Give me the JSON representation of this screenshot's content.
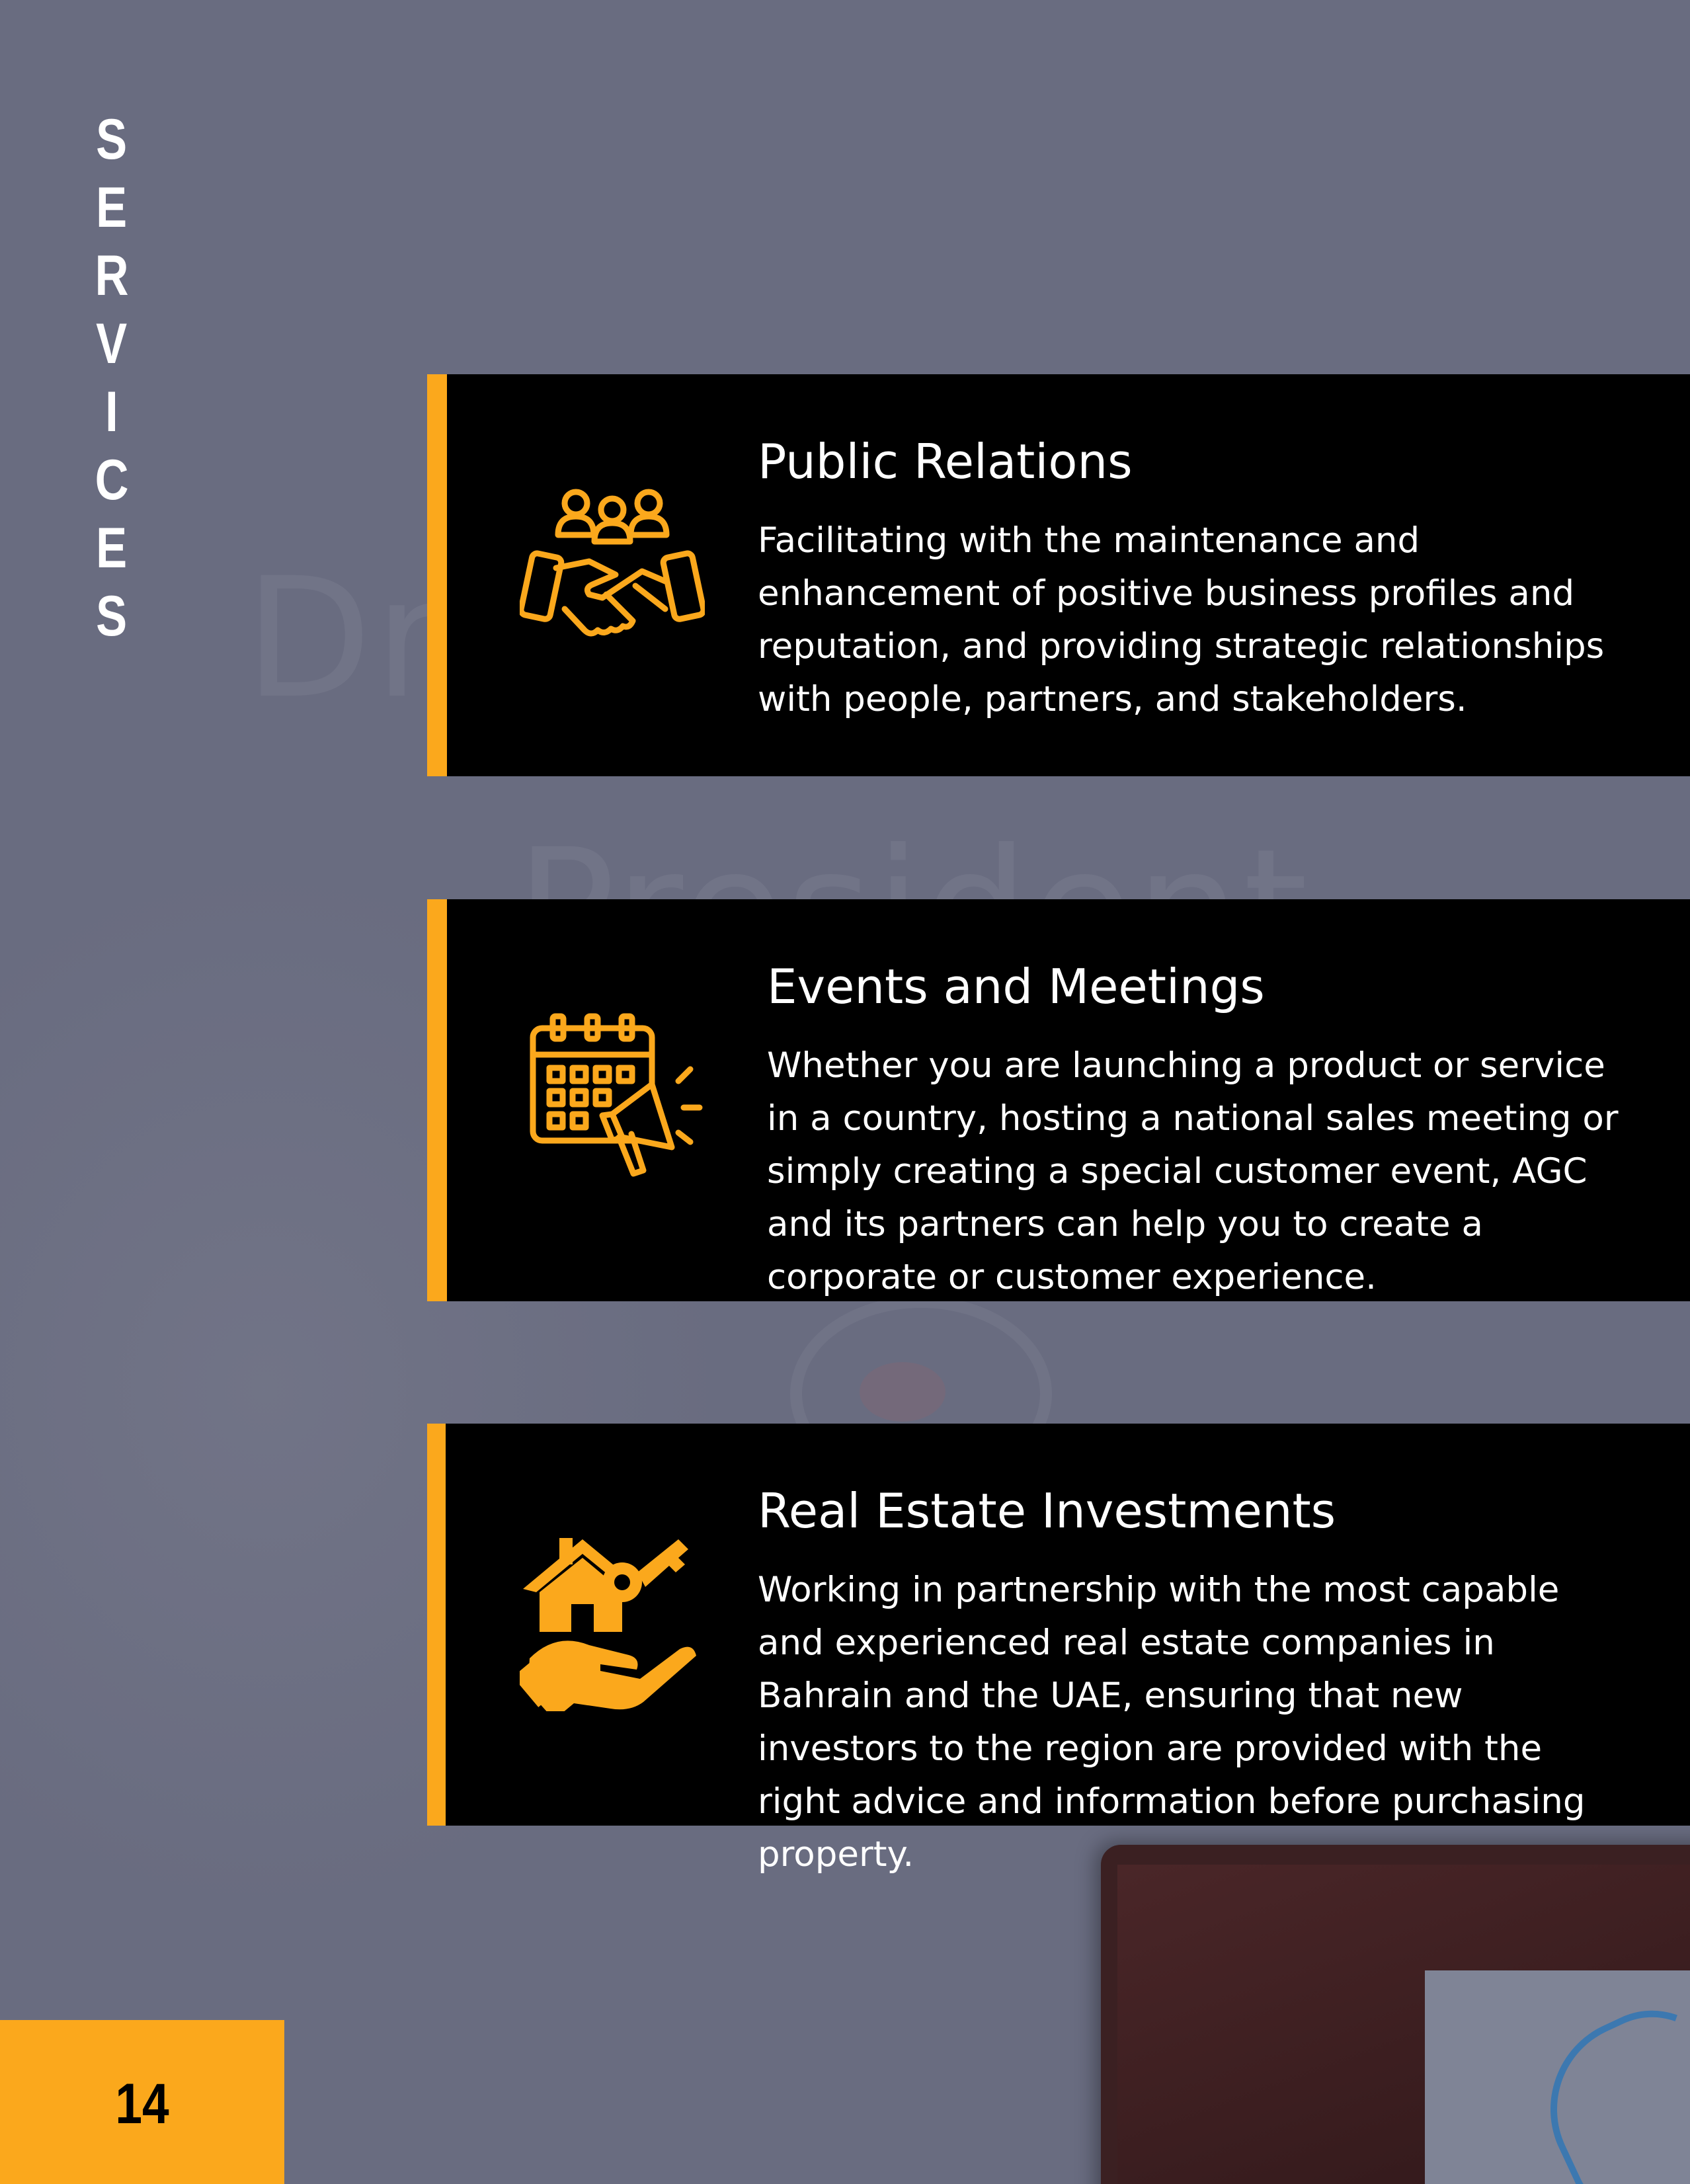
{
  "section_title": [
    "S",
    "E",
    "R",
    "V",
    "I",
    "C",
    "E",
    "S"
  ],
  "colors": {
    "accent": "#fba81c",
    "card_bg": "#000000",
    "page_bg": "#696c80",
    "text": "#ffffff"
  },
  "services": [
    {
      "icon": "handshake-group-icon",
      "title": "Public Relations",
      "body": "Facilitating with the maintenance and enhancement of positive business profiles and reputation, and providing strategic relationships with people, partners, and stakeholders."
    },
    {
      "icon": "calendar-megaphone-icon",
      "title": "Events and Meetings",
      "body": "Whether you are launching a product or service in a country, hosting a national sales meeting or simply creating a special customer event, AGC and its partners can help you to create a corporate or customer experience."
    },
    {
      "icon": "house-key-hand-icon",
      "title": "Real Estate Investments",
      "body": "Working in partnership with the most capable and experienced real estate companies in Bahrain and the UAE, ensuring that new investors to the region are provided with the right advice and information before purchasing property."
    }
  ],
  "page_number": "14"
}
